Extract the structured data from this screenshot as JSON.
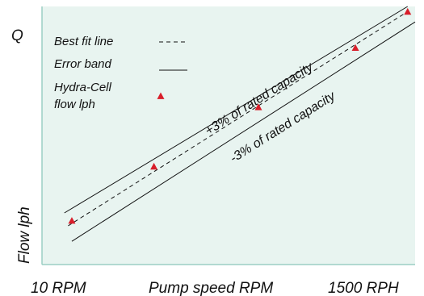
{
  "chart_data": {
    "type": "line",
    "title": "",
    "ylabel_top": "Q",
    "ylabel": "Flow lph",
    "xlabel": "Pump speed RPM",
    "x_min_label": "10 RPM",
    "x_max_label": "1500 RPH",
    "grid": false,
    "legend_position": "top-left",
    "legend": [
      {
        "label": "Best fit line",
        "style": "dashed"
      },
      {
        "label": "Error band",
        "style": "solid"
      },
      {
        "label_lines": [
          "Hydra-Cell",
          "flow lph"
        ],
        "style": "marker"
      }
    ],
    "x_range": [
      0,
      1
    ],
    "y_range": [
      0,
      1
    ],
    "best_fit_line": {
      "x": [
        0.07,
        0.98
      ],
      "y": [
        0.15,
        0.98
      ]
    },
    "upper_band_line": {
      "x": [
        0.06,
        0.98
      ],
      "y": [
        0.2,
        1.0
      ]
    },
    "lower_band_line": {
      "x": [
        0.08,
        1.0
      ],
      "y": [
        0.09,
        0.94
      ]
    },
    "band_label_upper": "+3% of rated capacity",
    "band_label_lower": "-3% of rated capacity",
    "series": [
      {
        "name": "Hydra-Cell flow lph",
        "x": [
          0.08,
          0.3,
          0.58,
          0.84,
          0.98
        ],
        "y": [
          0.17,
          0.38,
          0.61,
          0.84,
          0.98
        ]
      }
    ],
    "colors": {
      "plot_background": "#e8f4f0",
      "axis": "#9ccfc4",
      "marker": "#d81e2a",
      "line": "#111111"
    }
  }
}
